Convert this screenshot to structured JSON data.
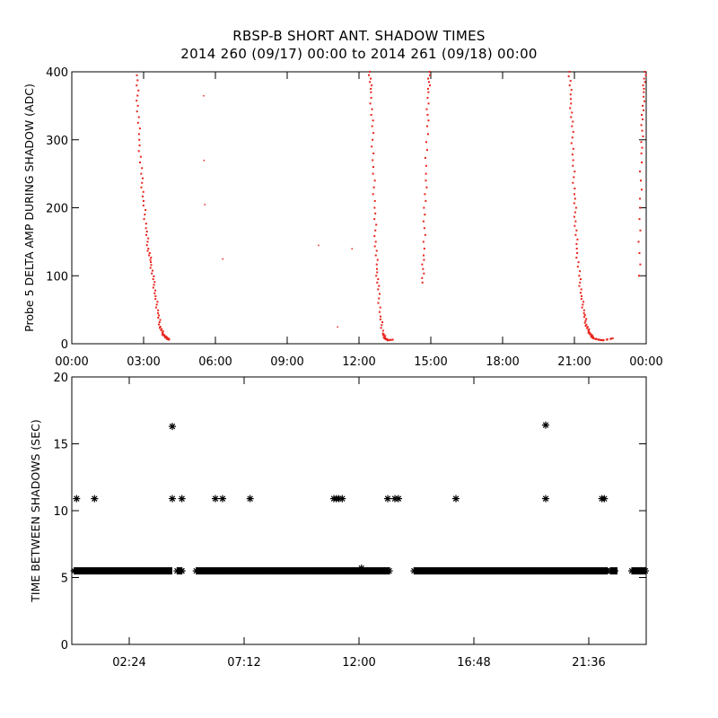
{
  "title_line1": "RBSP-B SHORT ANT. SHADOW TIMES",
  "title_line2": "2014 260 (09/17) 00:00 to 2014 261 (09/18) 00:00",
  "colors": {
    "red_series": "#e8231b",
    "black_series": "#000000",
    "axes": "#000000",
    "background": "#ffffff"
  },
  "chart_data": [
    {
      "type": "scatter",
      "ylabel": "Probe 5 DELTA AMP DURING SHADOW (ADC)",
      "xlabel": "",
      "x_units": "hours since 2014-09-17 00:00",
      "xlim": [
        0,
        24
      ],
      "ylim": [
        0,
        400
      ],
      "x_tick_labels": [
        "00:00",
        "03:00",
        "06:00",
        "09:00",
        "12:00",
        "15:00",
        "18:00",
        "21:00",
        "00:00"
      ],
      "y_tick_labels": [
        "0",
        "100",
        "200",
        "300",
        "400"
      ],
      "grid": false,
      "series": [
        {
          "color": "#e8231b",
          "marker": "dot",
          "x": [
            2.72,
            2.76,
            2.82,
            2.9,
            3.0,
            3.1,
            3.2,
            3.3,
            3.4,
            3.5,
            3.6,
            3.7,
            3.8,
            3.9,
            4.0,
            4.05,
            12.45,
            12.5,
            12.55,
            12.6,
            12.65,
            12.7,
            12.75,
            12.8,
            12.9,
            13.0,
            13.1,
            13.2,
            13.4,
            14.65,
            14.7,
            14.75,
            14.8,
            14.85,
            14.9,
            14.95,
            20.8,
            20.85,
            20.9,
            20.95,
            21.0,
            21.05,
            21.1,
            21.2,
            21.3,
            21.4,
            21.5,
            21.6,
            21.7,
            21.8,
            22.0,
            22.2,
            22.6,
            23.7,
            23.75,
            23.8,
            23.85,
            23.9,
            23.95,
            5.5,
            5.52,
            5.55,
            6.3,
            10.3,
            11.1,
            11.7
          ],
          "y": [
            395,
            350,
            300,
            250,
            210,
            170,
            140,
            120,
            95,
            70,
            45,
            25,
            15,
            10,
            8,
            6,
            400,
            370,
            320,
            260,
            200,
            150,
            110,
            80,
            40,
            15,
            8,
            5,
            6,
            90,
            130,
            190,
            250,
            320,
            370,
            400,
            400,
            360,
            320,
            270,
            220,
            180,
            140,
            100,
            70,
            45,
            28,
            18,
            12,
            8,
            6,
            5,
            8,
            100,
            200,
            280,
            330,
            370,
            400,
            365,
            270,
            205,
            125,
            145,
            25,
            140
          ]
        }
      ]
    },
    {
      "type": "scatter",
      "ylabel": "TIME BETWEEN SHADOWS (SEC)",
      "xlabel": "",
      "x_units": "hours since 2014-09-17 00:00",
      "xlim": [
        0,
        24
      ],
      "ylim": [
        0,
        20
      ],
      "x_tick_labels": [
        "02:24",
        "07:12",
        "12:00",
        "16:48",
        "21:36"
      ],
      "y_tick_labels": [
        "0",
        "5",
        "10",
        "15",
        "20"
      ],
      "grid": false,
      "series": [
        {
          "color": "#000000",
          "marker": "asterisk",
          "baseline_value": 5.5,
          "baseline_segments": [
            [
              0.1,
              4.2
            ],
            [
              4.4,
              4.6
            ],
            [
              5.2,
              13.3
            ],
            [
              14.3,
              22.4
            ],
            [
              22.5,
              22.8
            ],
            [
              23.4,
              24.0
            ]
          ],
          "x": [
            0.2,
            0.95,
            4.2,
            4.2,
            4.6,
            6.0,
            6.3,
            7.45,
            10.95,
            11.05,
            11.15,
            11.3,
            13.2,
            13.5,
            13.65,
            16.05,
            19.8,
            19.8,
            22.15,
            22.25,
            4.6,
            12.1
          ],
          "y": [
            10.9,
            10.9,
            16.3,
            10.9,
            10.9,
            10.9,
            10.9,
            10.9,
            10.9,
            10.9,
            10.9,
            10.9,
            10.9,
            10.9,
            10.9,
            10.9,
            16.4,
            10.9,
            10.9,
            10.9,
            5.5,
            5.7
          ]
        }
      ]
    }
  ]
}
